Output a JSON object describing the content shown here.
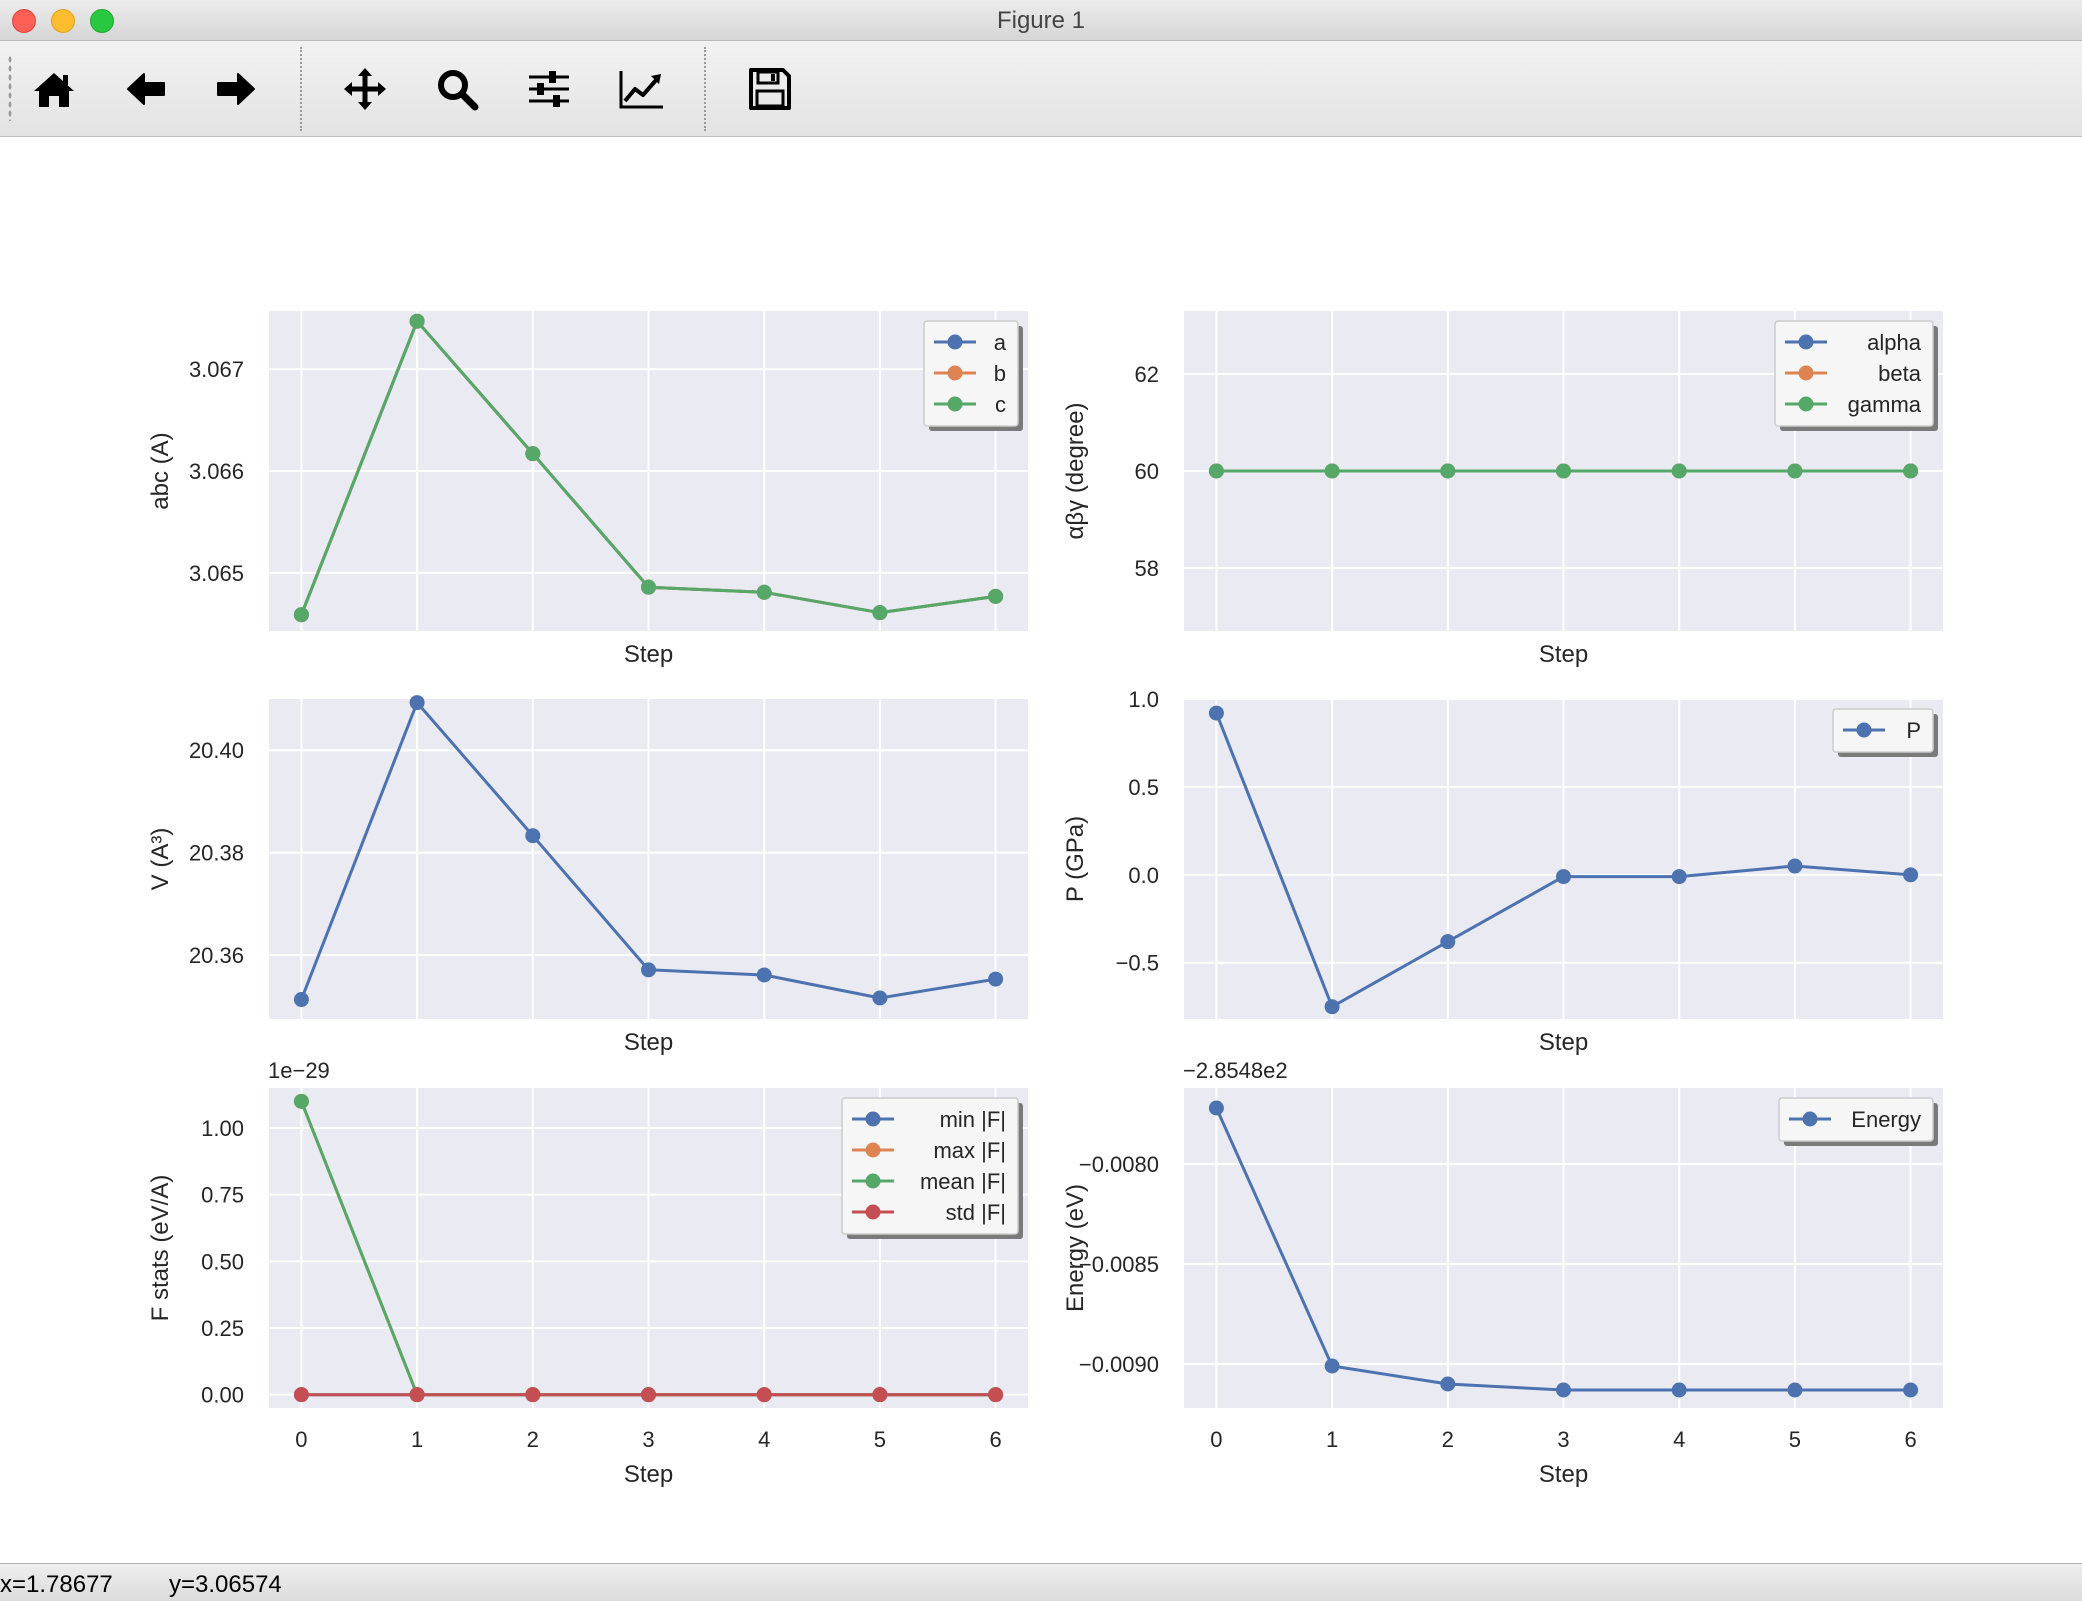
{
  "window": {
    "title": "Figure 1"
  },
  "toolbar": {
    "buttons": [
      {
        "name": "home-button",
        "icon": "home-icon"
      },
      {
        "name": "back-button",
        "icon": "arrow-left-icon"
      },
      {
        "name": "forward-button",
        "icon": "arrow-right-icon"
      },
      {
        "name": "pan-button",
        "icon": "move-icon"
      },
      {
        "name": "zoom-button",
        "icon": "magnifier-icon"
      },
      {
        "name": "configure-subplots-button",
        "icon": "sliders-icon"
      },
      {
        "name": "edit-axes-button",
        "icon": "line-chart-icon"
      },
      {
        "name": "save-button",
        "icon": "floppy-disk-icon"
      }
    ]
  },
  "status": {
    "x": "x=1.78677",
    "y": "y=3.06574"
  },
  "chart_data": [
    {
      "type": "line",
      "xlabel": "Step",
      "ylabel": "abc (A)",
      "x": [
        0,
        1,
        2,
        3,
        4,
        5,
        6
      ],
      "xticks": [],
      "ylim": [
        3.06443,
        3.06757
      ],
      "yticks": [
        3.065,
        3.066,
        3.067
      ],
      "ytick_labels": [
        "3.065",
        "3.066",
        "3.067"
      ],
      "legend": "top-right",
      "series": [
        {
          "name": "a",
          "color": "#4c72b0",
          "values": [
            3.06459,
            3.06747,
            3.06617,
            3.06486,
            3.06481,
            3.06461,
            3.06477
          ]
        },
        {
          "name": "b",
          "color": "#dd8452",
          "values": [
            3.06459,
            3.06747,
            3.06617,
            3.06486,
            3.06481,
            3.06461,
            3.06477
          ]
        },
        {
          "name": "c",
          "color": "#55a868",
          "values": [
            3.06459,
            3.06747,
            3.06617,
            3.06486,
            3.06481,
            3.06461,
            3.06477
          ]
        }
      ]
    },
    {
      "type": "line",
      "xlabel": "Step",
      "ylabel": "αβγ (degree)",
      "x": [
        0,
        1,
        2,
        3,
        4,
        5,
        6
      ],
      "xticks": [],
      "ylim": [
        56.7,
        63.3
      ],
      "yticks": [
        58,
        60,
        62
      ],
      "ytick_labels": [
        "58",
        "60",
        "62"
      ],
      "legend": "top-right",
      "series": [
        {
          "name": "alpha",
          "color": "#4c72b0",
          "values": [
            60,
            60,
            60,
            60,
            60,
            60,
            60
          ]
        },
        {
          "name": "beta",
          "color": "#dd8452",
          "values": [
            60,
            60,
            60,
            60,
            60,
            60,
            60
          ]
        },
        {
          "name": "gamma",
          "color": "#55a868",
          "values": [
            60,
            60,
            60,
            60,
            60,
            60,
            60
          ]
        }
      ]
    },
    {
      "type": "line",
      "xlabel": "Step",
      "ylabel": "V (A³)",
      "x": [
        0,
        1,
        2,
        3,
        4,
        5,
        6
      ],
      "xticks": [],
      "ylim": [
        20.3475,
        20.41
      ],
      "yticks": [
        20.36,
        20.38,
        20.4
      ],
      "ytick_labels": [
        "20.36",
        "20.38",
        "20.40"
      ],
      "legend": "none",
      "series": [
        {
          "name": "",
          "color": "#4c72b0",
          "values": [
            20.3513,
            20.4093,
            20.3833,
            20.3571,
            20.3561,
            20.3516,
            20.3553
          ]
        }
      ]
    },
    {
      "type": "line",
      "xlabel": "Step",
      "ylabel": "P (GPa)",
      "x": [
        0,
        1,
        2,
        3,
        4,
        5,
        6
      ],
      "xticks": [],
      "ylim": [
        -0.82,
        1.0
      ],
      "yticks": [
        -0.5,
        0.0,
        0.5,
        1.0
      ],
      "ytick_labels": [
        "−0.5",
        "0.0",
        "0.5",
        "1.0"
      ],
      "legend": "top-right",
      "series": [
        {
          "name": "P",
          "color": "#4c72b0",
          "values": [
            0.92,
            -0.75,
            -0.38,
            -0.01,
            -0.01,
            0.05,
            0.0
          ]
        }
      ]
    },
    {
      "type": "line",
      "xlabel": "Step",
      "ylabel": "F stats (eV/A)",
      "offset_label": "1e−29",
      "x": [
        0,
        1,
        2,
        3,
        4,
        5,
        6
      ],
      "xticks": [
        0,
        1,
        2,
        3,
        4,
        5,
        6
      ],
      "ylim": [
        -0.05,
        1.15
      ],
      "yticks": [
        0.0,
        0.25,
        0.5,
        0.75,
        1.0
      ],
      "ytick_labels": [
        "0.00",
        "0.25",
        "0.50",
        "0.75",
        "1.00"
      ],
      "legend": "top-right",
      "series": [
        {
          "name": "min |F|",
          "color": "#4c72b0",
          "values": [
            0,
            0,
            0,
            0,
            0,
            0,
            0
          ]
        },
        {
          "name": "max |F|",
          "color": "#dd8452",
          "values": [
            1.1,
            0,
            0,
            0,
            0,
            0,
            0
          ]
        },
        {
          "name": "mean |F|",
          "color": "#55a868",
          "values": [
            1.1,
            0,
            0,
            0,
            0,
            0,
            0
          ]
        },
        {
          "name": "std |F|",
          "color": "#c44e52",
          "values": [
            0,
            0,
            0,
            0,
            0,
            0,
            0
          ]
        }
      ]
    },
    {
      "type": "line",
      "xlabel": "Step",
      "ylabel": "Energy (eV)",
      "offset_label": "−2.8548e2",
      "x": [
        0,
        1,
        2,
        3,
        4,
        5,
        6
      ],
      "xticks": [
        0,
        1,
        2,
        3,
        4,
        5,
        6
      ],
      "ylim": [
        -0.00922,
        -0.00762
      ],
      "yticks": [
        -0.009,
        -0.0085,
        -0.008
      ],
      "ytick_labels": [
        "−0.0090",
        "−0.0085",
        "−0.0080"
      ],
      "legend": "top-right",
      "series": [
        {
          "name": "Energy",
          "color": "#4c72b0",
          "values": [
            -0.00772,
            -0.00901,
            -0.0091,
            -0.00913,
            -0.00913,
            -0.00913,
            -0.00913
          ]
        }
      ]
    }
  ]
}
